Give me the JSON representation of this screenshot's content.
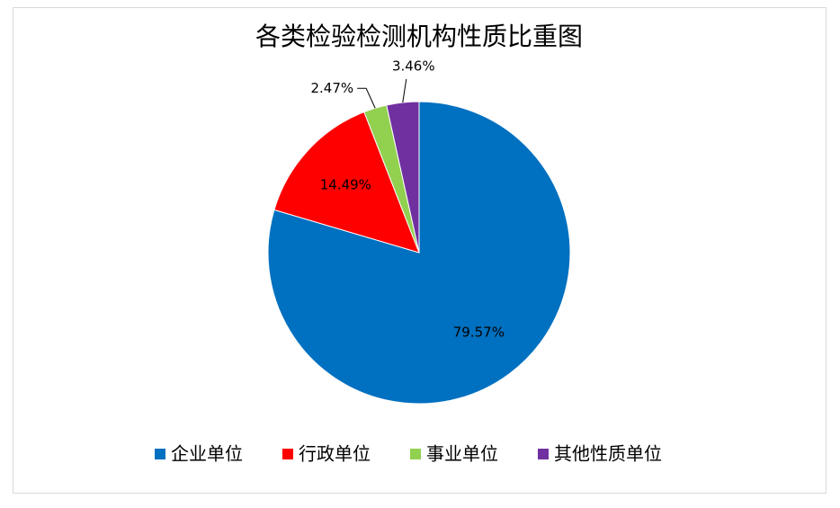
{
  "chart_data": {
    "type": "pie",
    "title": "各类检验检测机构性质比重图",
    "categories": [
      "企业单位",
      "行政单位",
      "事业单位",
      "其他性质单位"
    ],
    "values": [
      79.57,
      14.49,
      2.47,
      3.46
    ],
    "value_labels": [
      "79.57%",
      "14.49%",
      "2.47%",
      "3.46%"
    ],
    "colors": [
      "#0070c0",
      "#ff0000",
      "#92d050",
      "#7030a0"
    ],
    "legend": "bottom"
  }
}
